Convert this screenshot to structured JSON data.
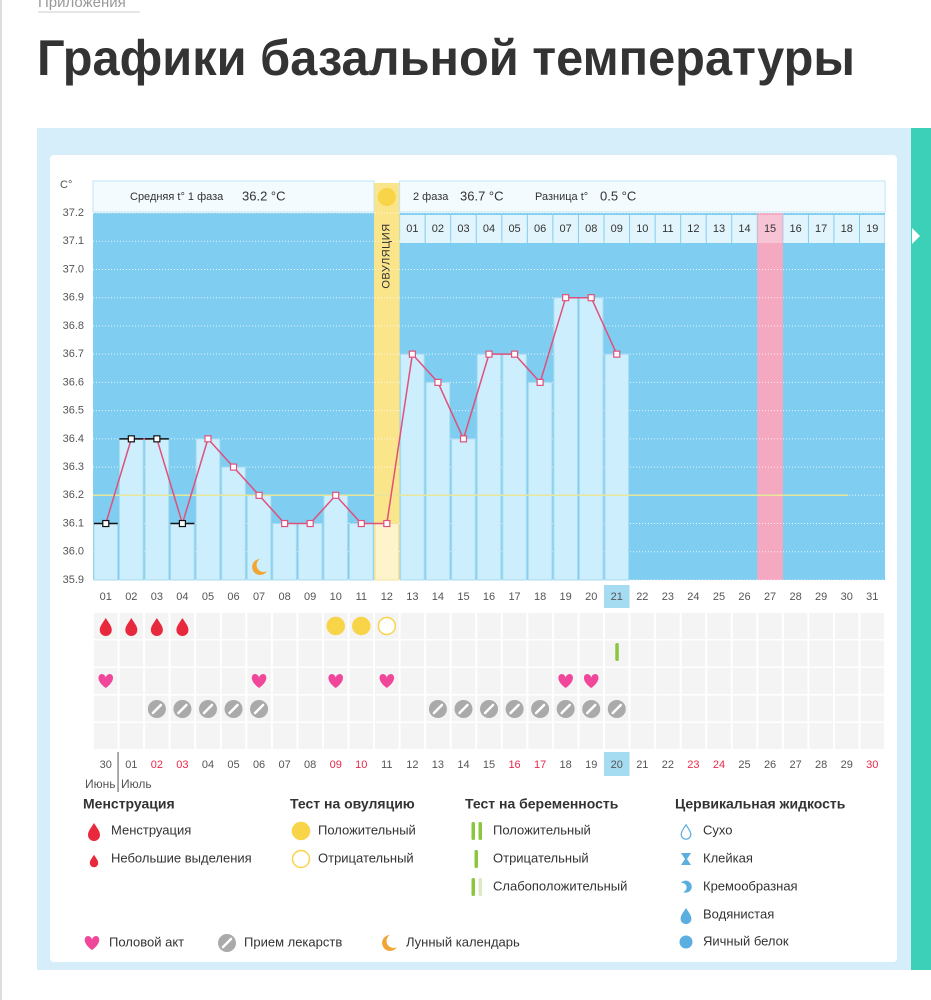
{
  "breadcrumb": "Приложения",
  "title": "Графики базальной температуры",
  "chart_data": {
    "type": "line",
    "y_unit": "С°",
    "phase1_label": "Средняя t° 1 фаза",
    "phase1_mean": "36.2 °C",
    "phase2_label": "2 фаза",
    "phase2_mean": "36.7 °C",
    "difference_label": "Разница t°",
    "difference": "0.5 °C",
    "ovulation_label": "ОВУЛЯЦИЯ",
    "ovulation_day": 12,
    "expected_period_day": 27,
    "current_day": 21,
    "coverline": 36.2,
    "categories": [
      "01",
      "02",
      "03",
      "04",
      "05",
      "06",
      "07",
      "08",
      "09",
      "10",
      "11",
      "12",
      "13",
      "14",
      "15",
      "16",
      "17",
      "18",
      "19",
      "20",
      "21",
      "22",
      "23",
      "24",
      "25",
      "26",
      "27",
      "28",
      "29",
      "30",
      "31"
    ],
    "phase2_days": [
      "01",
      "02",
      "03",
      "04",
      "05",
      "06",
      "07",
      "08",
      "09",
      "10",
      "11",
      "12",
      "13",
      "14",
      "15",
      "16",
      "17",
      "18",
      "19"
    ],
    "dates": [
      "30",
      "01",
      "02",
      "03",
      "04",
      "05",
      "06",
      "07",
      "08",
      "09",
      "10",
      "11",
      "12",
      "13",
      "14",
      "15",
      "16",
      "17",
      "18",
      "19",
      "20",
      "21",
      "22",
      "23",
      "24",
      "25",
      "26",
      "27",
      "28",
      "29",
      "30"
    ],
    "weekend_indices": [
      2,
      3,
      9,
      10,
      16,
      17,
      23,
      24,
      30
    ],
    "months": [
      "Июнь",
      "Июль"
    ],
    "values": [
      36.1,
      36.4,
      36.4,
      36.1,
      36.4,
      36.3,
      36.2,
      36.1,
      36.1,
      36.2,
      36.1,
      36.1,
      36.7,
      36.6,
      36.4,
      36.7,
      36.7,
      36.6,
      36.9,
      36.9,
      36.7,
      null,
      null,
      null,
      null,
      null,
      null,
      null,
      null,
      null,
      null
    ],
    "line_color": "#e0507c",
    "bar_color": "#cdeefc",
    "background": "#7fcdf0",
    "ylim": [
      35.9,
      37.2
    ],
    "yticks": [
      35.9,
      {
        "value": 36,
        "label": "36.0"
      },
      36.1,
      36.2,
      36.3,
      36.4,
      36.5,
      36.6,
      36.7,
      36.8,
      36.9,
      {
        "value": 37,
        "label": "37.0"
      },
      37.1,
      37.2
    ],
    "events": {
      "menstruation": [
        1,
        2,
        3,
        4
      ],
      "ovulation_positive": [
        10,
        11
      ],
      "ovulation_negative": [
        12
      ],
      "pregnancy_negative": [
        21
      ],
      "intercourse": [
        1,
        7,
        10,
        12,
        19,
        20
      ],
      "medication": [
        3,
        4,
        5,
        6,
        7,
        14,
        15,
        16,
        17,
        18,
        19,
        20,
        21
      ],
      "moon": [
        7
      ]
    }
  },
  "legend": [
    {
      "title": "Менструация",
      "items": [
        "Менструация",
        "Небольшие выделения"
      ]
    },
    {
      "title": "Тест на овуляцию",
      "items": [
        "Положительный",
        "Отрицательный"
      ]
    },
    {
      "title": "Тест на беременность",
      "items": [
        "Положительный",
        "Отрицательный",
        "Слабоположительный"
      ]
    },
    {
      "title": "Цервикальная жидкость",
      "items": [
        "Сухо",
        "Клейкая",
        "Кремообразная",
        "Водянистая",
        "Яичный белок"
      ]
    }
  ],
  "legend_extra": [
    "Половой акт",
    "Прием лекарств",
    "Лунный календарь"
  ]
}
